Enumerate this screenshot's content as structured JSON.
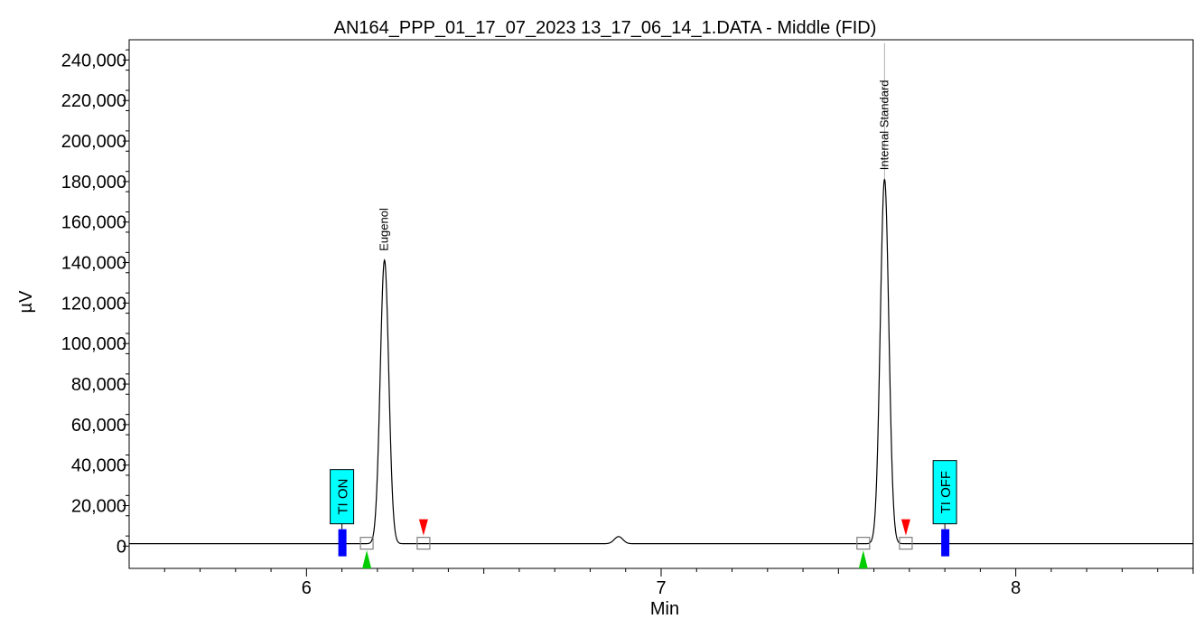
{
  "chart_data": {
    "type": "line",
    "title": "AN164_PPP_01_17_07_2023 13_17_06_14_1.DATA - Middle (FID)",
    "xlabel": "Min",
    "ylabel": "µV",
    "xlim": [
      5.5,
      8.5
    ],
    "ylim": [
      -11000,
      250000
    ],
    "x_ticks": [
      6,
      7,
      8
    ],
    "x_tick_labels": [
      "6",
      "7",
      "8"
    ],
    "y_ticks": [
      0,
      20000,
      40000,
      60000,
      80000,
      100000,
      120000,
      140000,
      160000,
      180000,
      200000,
      220000,
      240000
    ],
    "y_tick_labels": [
      "0",
      "20,000",
      "40,000",
      "60,000",
      "80,000",
      "100,000",
      "120,000",
      "140,000",
      "160,000",
      "180,000",
      "200,000",
      "220,000",
      "240,000"
    ],
    "baseline": 1200,
    "peaks": [
      {
        "name": "Eugenol",
        "rt": 6.22,
        "height": 140000,
        "width": 0.012
      },
      {
        "name": "Internal Standard",
        "rt": 7.63,
        "height": 180000,
        "width": 0.012
      },
      {
        "name": "",
        "rt": 6.88,
        "height": 3500,
        "width": 0.012
      }
    ],
    "peak_labels": [
      "Eugenol",
      "Internal Standard"
    ],
    "events": [
      {
        "label": "TI ON",
        "time": 6.1
      },
      {
        "label": "TI OFF",
        "time": 7.8
      }
    ],
    "peak_start_markers": [
      6.17,
      7.57
    ],
    "peak_end_markers": [
      6.33,
      7.69
    ],
    "colors": {
      "trace": "#000000",
      "event_box": "#00ffff",
      "event_bar": "#0000ff",
      "start_marker": "#00cc00",
      "end_marker": "#ff0000",
      "marker_square": "#808080"
    }
  }
}
